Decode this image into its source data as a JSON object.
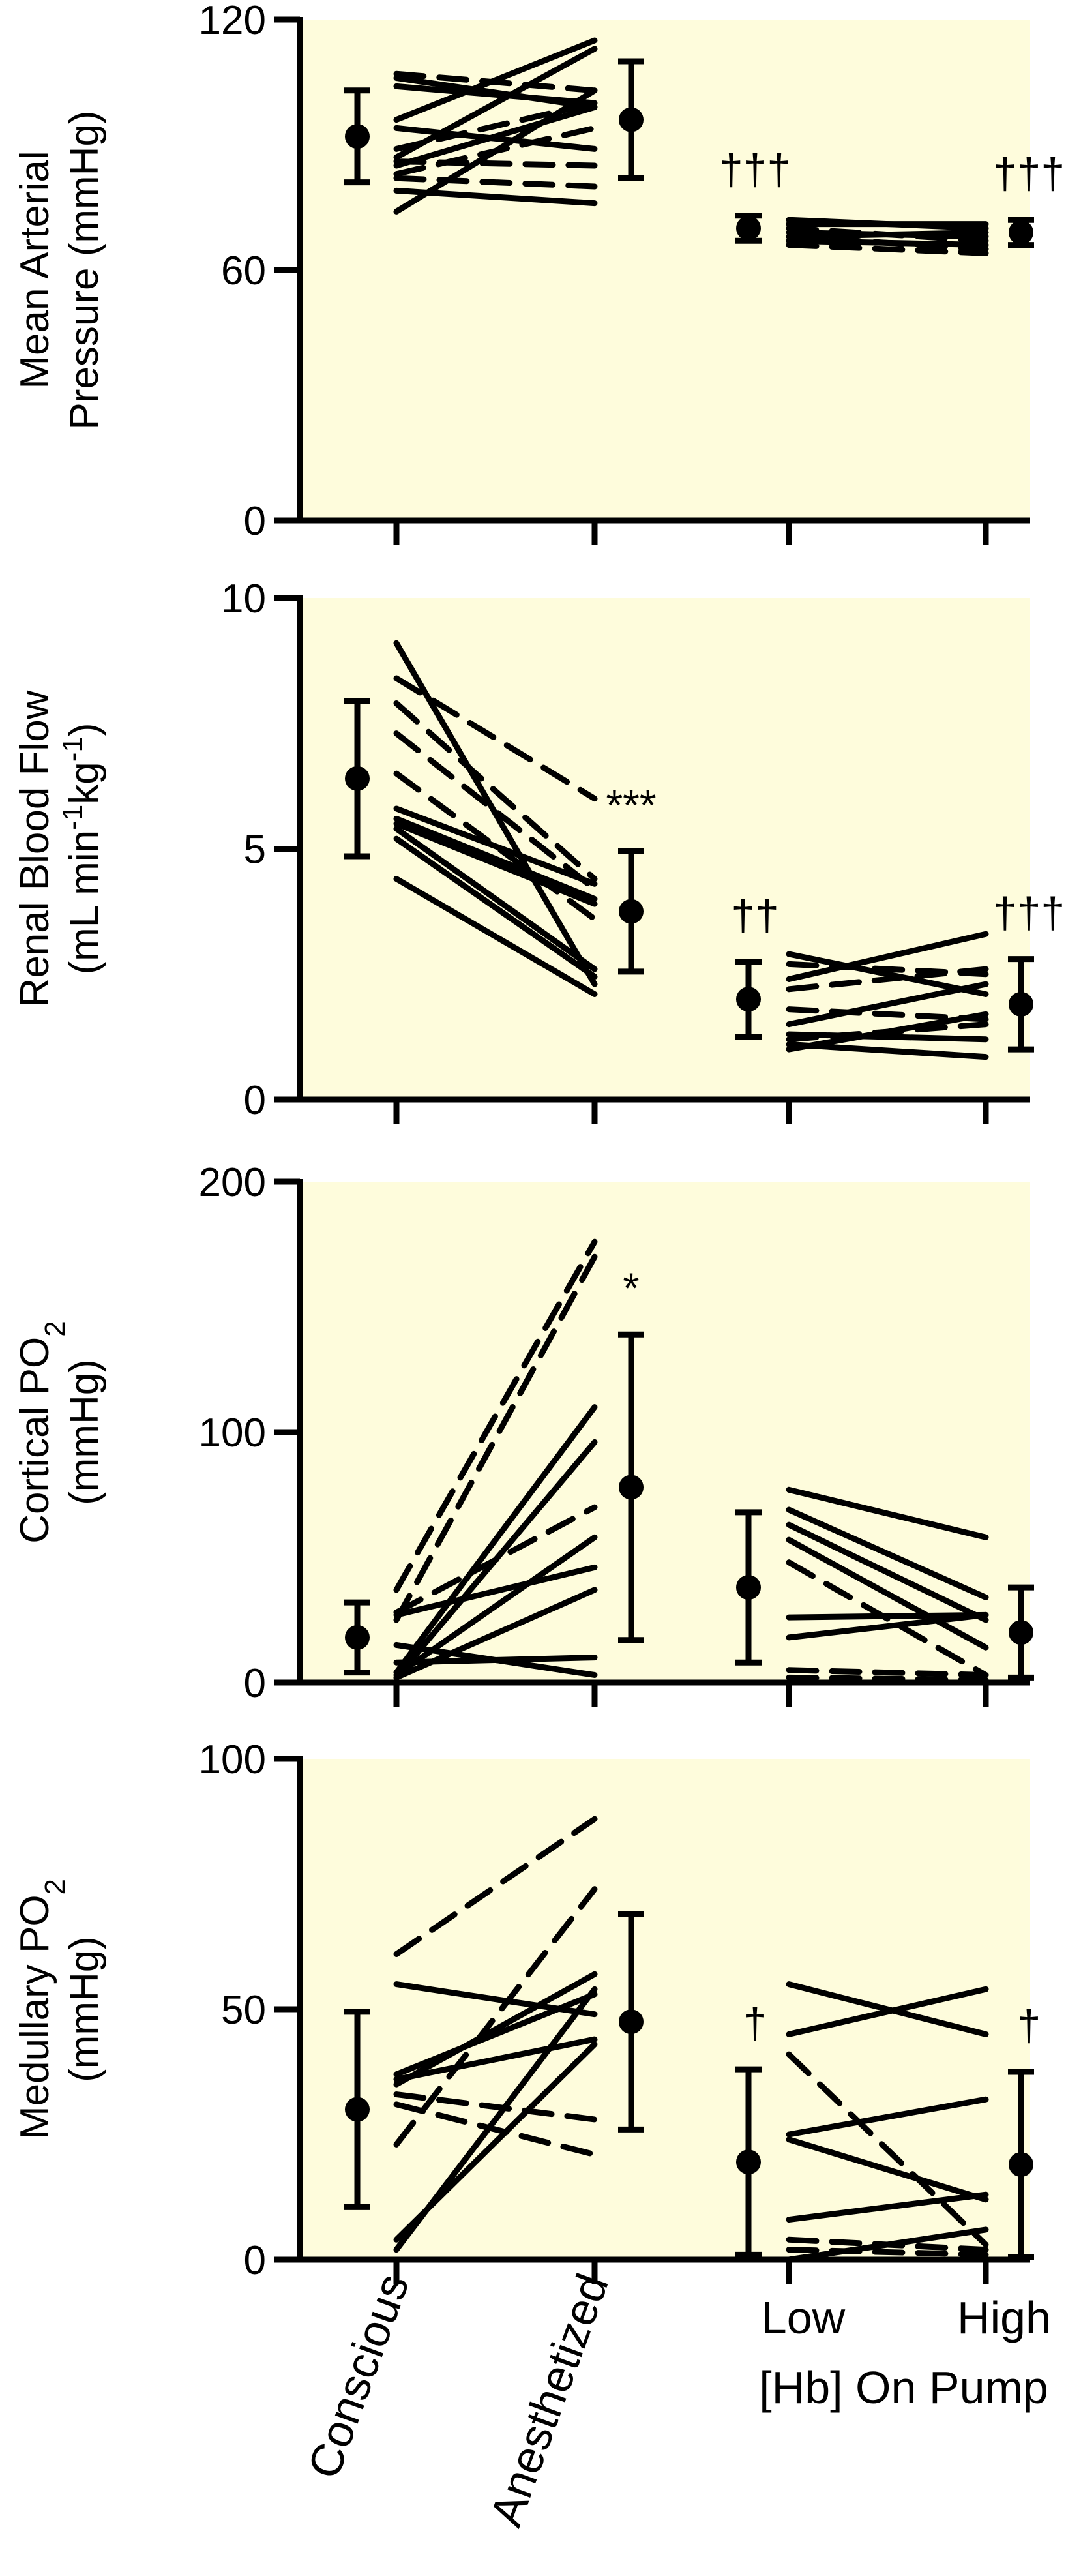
{
  "chart_data": [
    {
      "type": "line",
      "ylabel": [
        "Mean Arterial",
        "Pressure (mmHg)"
      ],
      "ylim": [
        0,
        120
      ],
      "yticks": [
        0,
        60,
        120
      ],
      "background": "#fefcdc",
      "means": [
        {
          "x": "Conscious",
          "mean": 92,
          "err": 11
        },
        {
          "x": "Anesthetized",
          "mean": 96,
          "err": 14
        },
        {
          "x": "Low",
          "mean": 70,
          "err": 3
        },
        {
          "x": "High",
          "mean": 69,
          "err": 3
        }
      ],
      "significance": [
        {
          "x": "Low",
          "label": "†††"
        },
        {
          "x": "High",
          "label": "†††"
        }
      ],
      "segments": [
        {
          "from": "Conscious",
          "to": "Anesthetized",
          "y1": 106,
          "y2": 99,
          "dash": false
        },
        {
          "from": "Conscious",
          "to": "Anesthetized",
          "y1": 104,
          "y2": 100,
          "dash": false
        },
        {
          "from": "Conscious",
          "to": "Anesthetized",
          "y1": 96,
          "y2": 115,
          "dash": false
        },
        {
          "from": "Conscious",
          "to": "Anesthetized",
          "y1": 94,
          "y2": 89,
          "dash": false
        },
        {
          "from": "Conscious",
          "to": "Anesthetized",
          "y1": 87,
          "y2": 113,
          "dash": false
        },
        {
          "from": "Conscious",
          "to": "Anesthetized",
          "y1": 85,
          "y2": 99,
          "dash": false
        },
        {
          "from": "Conscious",
          "to": "Anesthetized",
          "y1": 74,
          "y2": 103,
          "dash": false
        },
        {
          "from": "Conscious",
          "to": "Anesthetized",
          "y1": 79,
          "y2": 76,
          "dash": false
        },
        {
          "from": "Conscious",
          "to": "Anesthetized",
          "y1": 107,
          "y2": 103,
          "dash": true
        },
        {
          "from": "Conscious",
          "to": "Anesthetized",
          "y1": 89,
          "y2": 100,
          "dash": true
        },
        {
          "from": "Conscious",
          "to": "Anesthetized",
          "y1": 86,
          "y2": 85,
          "dash": true
        },
        {
          "from": "Conscious",
          "to": "Anesthetized",
          "y1": 83,
          "y2": 94,
          "dash": true
        },
        {
          "from": "Conscious",
          "to": "Anesthetized",
          "y1": 82,
          "y2": 80,
          "dash": true
        },
        {
          "from": "Low",
          "to": "High",
          "y1": 72,
          "y2": 70,
          "dash": false
        },
        {
          "from": "Low",
          "to": "High",
          "y1": 71,
          "y2": 71,
          "dash": false
        },
        {
          "from": "Low",
          "to": "High",
          "y1": 69,
          "y2": 68,
          "dash": false
        },
        {
          "from": "Low",
          "to": "High",
          "y1": 68,
          "y2": 69,
          "dash": false
        },
        {
          "from": "Low",
          "to": "High",
          "y1": 67,
          "y2": 66,
          "dash": false
        },
        {
          "from": "Low",
          "to": "High",
          "y1": 70,
          "y2": 67,
          "dash": true
        },
        {
          "from": "Low",
          "to": "High",
          "y1": 68,
          "y2": 65,
          "dash": true
        },
        {
          "from": "Low",
          "to": "High",
          "y1": 66,
          "y2": 64,
          "dash": true
        }
      ]
    },
    {
      "type": "line",
      "ylabel": [
        "Renal Blood Flow",
        "(mL min-1kg-1)"
      ],
      "ylim": [
        0,
        10
      ],
      "yticks": [
        0,
        5,
        10
      ],
      "background": "#fefcdc",
      "means": [
        {
          "x": "Conscious",
          "mean": 6.4,
          "err": 1.55
        },
        {
          "x": "Anesthetized",
          "mean": 3.75,
          "err": 1.2
        },
        {
          "x": "Low",
          "mean": 2.0,
          "err": 0.75
        },
        {
          "x": "High",
          "mean": 1.9,
          "err": 0.9
        }
      ],
      "significance": [
        {
          "x": "Anesthetized",
          "label": "***"
        },
        {
          "x": "Low",
          "label": "††"
        },
        {
          "x": "High",
          "label": "†††"
        }
      ],
      "segments": [
        {
          "from": "Conscious",
          "to": "Anesthetized",
          "y1": 9.1,
          "y2": 2.3,
          "dash": false
        },
        {
          "from": "Conscious",
          "to": "Anesthetized",
          "y1": 5.8,
          "y2": 4.3,
          "dash": false
        },
        {
          "from": "Conscious",
          "to": "Anesthetized",
          "y1": 5.6,
          "y2": 4.0,
          "dash": false
        },
        {
          "from": "Conscious",
          "to": "Anesthetized",
          "y1": 5.5,
          "y2": 3.9,
          "dash": false
        },
        {
          "from": "Conscious",
          "to": "Anesthetized",
          "y1": 5.4,
          "y2": 2.6,
          "dash": false
        },
        {
          "from": "Conscious",
          "to": "Anesthetized",
          "y1": 5.2,
          "y2": 2.45,
          "dash": false
        },
        {
          "from": "Conscious",
          "to": "Anesthetized",
          "y1": 4.4,
          "y2": 2.1,
          "dash": false
        },
        {
          "from": "Conscious",
          "to": "Anesthetized",
          "y1": 8.4,
          "y2": 6.0,
          "dash": true
        },
        {
          "from": "Conscious",
          "to": "Anesthetized",
          "y1": 7.9,
          "y2": 4.4,
          "dash": true
        },
        {
          "from": "Conscious",
          "to": "Anesthetized",
          "y1": 7.3,
          "y2": 4.2,
          "dash": true
        },
        {
          "from": "Conscious",
          "to": "Anesthetized",
          "y1": 6.5,
          "y2": 3.6,
          "dash": true
        },
        {
          "from": "Low",
          "to": "High",
          "y1": 2.4,
          "y2": 3.3,
          "dash": false
        },
        {
          "from": "Low",
          "to": "High",
          "y1": 2.9,
          "y2": 2.1,
          "dash": false
        },
        {
          "from": "Low",
          "to": "High",
          "y1": 1.5,
          "y2": 2.3,
          "dash": false
        },
        {
          "from": "Low",
          "to": "High",
          "y1": 1.3,
          "y2": 1.2,
          "dash": false
        },
        {
          "from": "Low",
          "to": "High",
          "y1": 1.1,
          "y2": 0.85,
          "dash": false
        },
        {
          "from": "Low",
          "to": "High",
          "y1": 1.0,
          "y2": 1.7,
          "dash": false
        },
        {
          "from": "Low",
          "to": "High",
          "y1": 2.7,
          "y2": 2.5,
          "dash": true
        },
        {
          "from": "Low",
          "to": "High",
          "y1": 2.2,
          "y2": 2.6,
          "dash": true
        },
        {
          "from": "Low",
          "to": "High",
          "y1": 1.8,
          "y2": 1.6,
          "dash": true
        },
        {
          "from": "Low",
          "to": "High",
          "y1": 1.2,
          "y2": 1.5,
          "dash": true
        }
      ]
    },
    {
      "type": "line",
      "ylabel": [
        "Cortical PO2",
        "(mmHg)"
      ],
      "ylim": [
        0,
        200
      ],
      "yticks": [
        0,
        100,
        200
      ],
      "background": "#fefcdc",
      "means": [
        {
          "x": "Conscious",
          "mean": 18,
          "err": 14
        },
        {
          "x": "Anesthetized",
          "mean": 78,
          "err": 61
        },
        {
          "x": "Low",
          "mean": 38,
          "err": 30
        },
        {
          "x": "High",
          "mean": 20,
          "err": 18
        }
      ],
      "significance": [
        {
          "x": "Anesthetized",
          "label": "*"
        }
      ],
      "segments": [
        {
          "from": "Conscious",
          "to": "Anesthetized",
          "y1": 4,
          "y2": 110,
          "dash": false
        },
        {
          "from": "Conscious",
          "to": "Anesthetized",
          "y1": 2,
          "y2": 96,
          "dash": false
        },
        {
          "from": "Conscious",
          "to": "Anesthetized",
          "y1": 3,
          "y2": 58,
          "dash": false
        },
        {
          "from": "Conscious",
          "to": "Anesthetized",
          "y1": 27,
          "y2": 46,
          "dash": false
        },
        {
          "from": "Conscious",
          "to": "Anesthetized",
          "y1": 2,
          "y2": 37,
          "dash": false
        },
        {
          "from": "Conscious",
          "to": "Anesthetized",
          "y1": 15,
          "y2": 3,
          "dash": false
        },
        {
          "from": "Conscious",
          "to": "Anesthetized",
          "y1": 8,
          "y2": 10,
          "dash": false
        },
        {
          "from": "Conscious",
          "to": "Anesthetized",
          "y1": 37,
          "y2": 176,
          "dash": true
        },
        {
          "from": "Conscious",
          "to": "Anesthetized",
          "y1": 25,
          "y2": 170,
          "dash": true
        },
        {
          "from": "Conscious",
          "to": "Anesthetized",
          "y1": 28,
          "y2": 70,
          "dash": true
        },
        {
          "from": "Low",
          "to": "High",
          "y1": 77,
          "y2": 58,
          "dash": false
        },
        {
          "from": "Low",
          "to": "High",
          "y1": 69,
          "y2": 34,
          "dash": false
        },
        {
          "from": "Low",
          "to": "High",
          "y1": 63,
          "y2": 25,
          "dash": false
        },
        {
          "from": "Low",
          "to": "High",
          "y1": 57,
          "y2": 14,
          "dash": false
        },
        {
          "from": "Low",
          "to": "High",
          "y1": 26,
          "y2": 27,
          "dash": false
        },
        {
          "from": "Low",
          "to": "High",
          "y1": 18,
          "y2": 27,
          "dash": false
        },
        {
          "from": "Low",
          "to": "High",
          "y1": 48,
          "y2": 3,
          "dash": true
        },
        {
          "from": "Low",
          "to": "High",
          "y1": 5,
          "y2": 3,
          "dash": true
        },
        {
          "from": "Low",
          "to": "High",
          "y1": 2,
          "y2": 1,
          "dash": true
        }
      ]
    },
    {
      "type": "line",
      "ylabel": [
        "Medullary PO2",
        "(mmHg)"
      ],
      "ylim": [
        0,
        100
      ],
      "yticks": [
        0,
        50,
        100
      ],
      "background": "#fefcdc",
      "means": [
        {
          "x": "Conscious",
          "mean": 30,
          "err": 19.5
        },
        {
          "x": "Anesthetized",
          "mean": 47.5,
          "err": 21.5
        },
        {
          "x": "Low",
          "mean": 19.5,
          "err": 18.5
        },
        {
          "x": "High",
          "mean": 19,
          "err": 18.5
        }
      ],
      "significance": [
        {
          "x": "Low",
          "label": "†"
        },
        {
          "x": "High",
          "label": "†"
        }
      ],
      "segments": [
        {
          "from": "Conscious",
          "to": "Anesthetized",
          "y1": 55,
          "y2": 49,
          "dash": false
        },
        {
          "from": "Conscious",
          "to": "Anesthetized",
          "y1": 37,
          "y2": 53,
          "dash": false
        },
        {
          "from": "Conscious",
          "to": "Anesthetized",
          "y1": 36,
          "y2": 44,
          "dash": false
        },
        {
          "from": "Conscious",
          "to": "Anesthetized",
          "y1": 35,
          "y2": 57,
          "dash": false
        },
        {
          "from": "Conscious",
          "to": "Anesthetized",
          "y1": 4,
          "y2": 43,
          "dash": false
        },
        {
          "from": "Conscious",
          "to": "Anesthetized",
          "y1": 2,
          "y2": 54,
          "dash": false
        },
        {
          "from": "Conscious",
          "to": "Anesthetized",
          "y1": 61,
          "y2": 88,
          "dash": true
        },
        {
          "from": "Conscious",
          "to": "Anesthetized",
          "y1": 23,
          "y2": 74,
          "dash": true
        },
        {
          "from": "Conscious",
          "to": "Anesthetized",
          "y1": 33,
          "y2": 28,
          "dash": true
        },
        {
          "from": "Conscious",
          "to": "Anesthetized",
          "y1": 31,
          "y2": 21,
          "dash": true
        },
        {
          "from": "Low",
          "to": "High",
          "y1": 55,
          "y2": 45,
          "dash": false
        },
        {
          "from": "Low",
          "to": "High",
          "y1": 45,
          "y2": 54,
          "dash": false
        },
        {
          "from": "Low",
          "to": "High",
          "y1": 25,
          "y2": 32,
          "dash": false
        },
        {
          "from": "Low",
          "to": "High",
          "y1": 24,
          "y2": 12,
          "dash": false
        },
        {
          "from": "Low",
          "to": "High",
          "y1": 8,
          "y2": 13,
          "dash": false
        },
        {
          "from": "Low",
          "to": "High",
          "y1": 0,
          "y2": 6,
          "dash": false
        },
        {
          "from": "Low",
          "to": "High",
          "y1": 41,
          "y2": 3,
          "dash": true
        },
        {
          "from": "Low",
          "to": "High",
          "y1": 4,
          "y2": 2,
          "dash": true
        },
        {
          "from": "Low",
          "to": "High",
          "y1": 2,
          "y2": 1,
          "dash": true
        }
      ]
    }
  ],
  "x_categories": [
    "Conscious",
    "Anesthetized",
    "Low",
    "High"
  ],
  "x_group_label": "[Hb] On Pump"
}
